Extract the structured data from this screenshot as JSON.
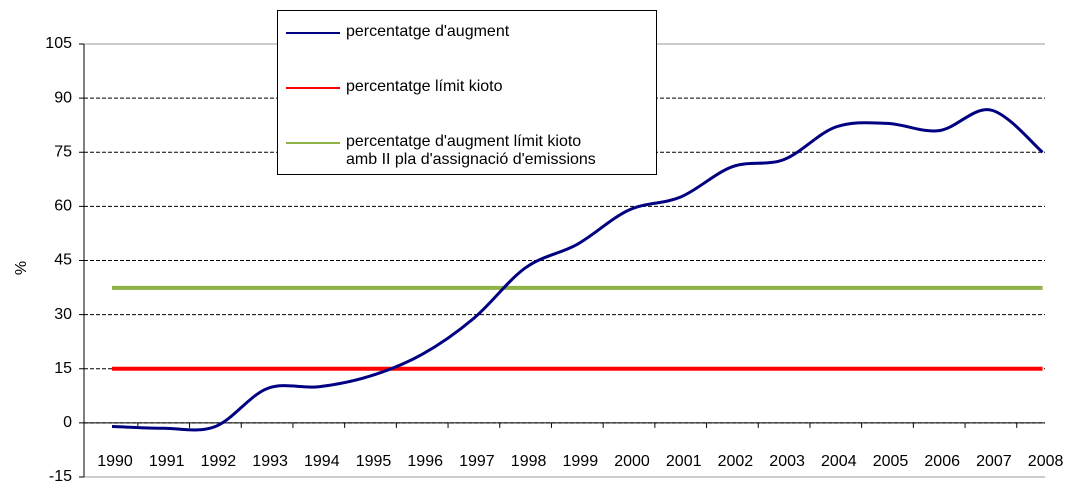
{
  "chart_data": {
    "type": "line",
    "y_label": "%",
    "categories": [
      "1990",
      "1991",
      "1992",
      "1993",
      "1994",
      "1995",
      "1996",
      "1997",
      "1998",
      "1999",
      "2000",
      "2001",
      "2002",
      "2003",
      "2004",
      "2005",
      "2006",
      "2007",
      "2008"
    ],
    "series": [
      {
        "name": "percentatge d'augment",
        "color": "#000080",
        "values": [
          -1,
          -1.5,
          -1,
          9.5,
          10,
          13,
          19,
          29,
          43,
          49.5,
          59,
          62.6,
          71,
          73,
          82,
          83,
          81,
          86.7,
          75
        ]
      },
      {
        "name": "percentatge límit kioto",
        "color": "#ff0000",
        "values": [
          15,
          15,
          15,
          15,
          15,
          15,
          15,
          15,
          15,
          15,
          15,
          15,
          15,
          15,
          15,
          15,
          15,
          15,
          15
        ]
      },
      {
        "name": "percentatge d'augment límit kioto\namb II pla d'assignació d'emissions",
        "color": "#8fb346",
        "values": [
          37.4,
          37.4,
          37.4,
          37.4,
          37.4,
          37.4,
          37.4,
          37.4,
          37.4,
          37.4,
          37.4,
          37.4,
          37.4,
          37.4,
          37.4,
          37.4,
          37.4,
          37.4,
          37.4
        ]
      }
    ],
    "ylim": [
      -15,
      105
    ],
    "yticks": [
      -15,
      0,
      15,
      30,
      45,
      60,
      75,
      90,
      105
    ],
    "grid": true
  }
}
